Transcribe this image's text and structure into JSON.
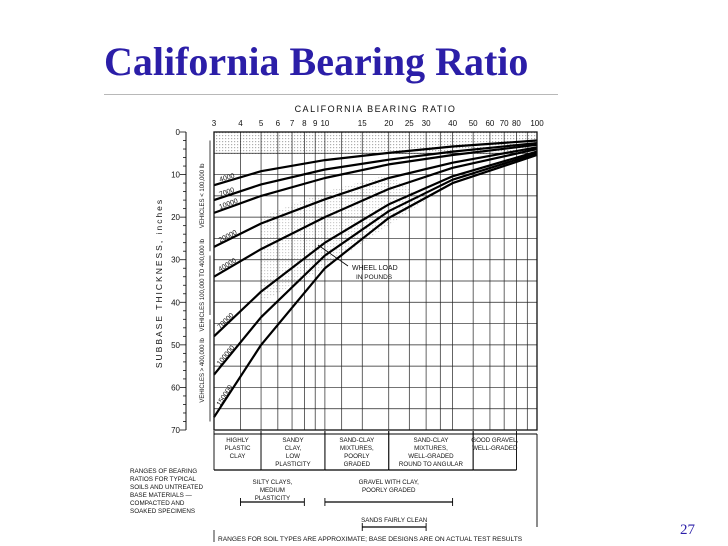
{
  "slide": {
    "title": "California Bearing Ratio",
    "page_number": "27"
  },
  "chart_data": {
    "type": "line",
    "title": "CALIFORNIA   BEARING   RATIO",
    "xlabel": "",
    "ylabel": "SUBBASE   THICKNESS, inches",
    "x_scale": "log",
    "xlim": [
      3,
      100
    ],
    "ylim": [
      0,
      70
    ],
    "y_inverted": true,
    "grid": true,
    "x_ticks": [
      3,
      4,
      5,
      6,
      7,
      8,
      9,
      10,
      15,
      20,
      25,
      30,
      40,
      50,
      60,
      70,
      80,
      100
    ],
    "y_ticks": [
      0,
      10,
      20,
      30,
      40,
      50,
      60,
      70
    ],
    "series": [
      {
        "name": "4000",
        "points": [
          [
            3,
            12.5
          ],
          [
            5,
            9.2
          ],
          [
            10,
            6.6
          ],
          [
            20,
            4.9
          ],
          [
            40,
            3.4
          ],
          [
            100,
            2.0
          ]
        ]
      },
      {
        "name": "7000",
        "points": [
          [
            3,
            16
          ],
          [
            5,
            12.3
          ],
          [
            10,
            8.8
          ],
          [
            20,
            6.5
          ],
          [
            40,
            4.6
          ],
          [
            100,
            2.6
          ]
        ]
      },
      {
        "name": "10000",
        "points": [
          [
            3,
            19
          ],
          [
            5,
            15
          ],
          [
            10,
            10.8
          ],
          [
            20,
            7.6
          ],
          [
            40,
            5.4
          ],
          [
            100,
            3.0
          ]
        ]
      },
      {
        "name": "20000",
        "points": [
          [
            3,
            27
          ],
          [
            5,
            21.5
          ],
          [
            10,
            15.8
          ],
          [
            20,
            10.8
          ],
          [
            40,
            7.2
          ],
          [
            100,
            3.6
          ]
        ]
      },
      {
        "name": "40000",
        "points": [
          [
            3,
            34
          ],
          [
            5,
            27.5
          ],
          [
            10,
            20
          ],
          [
            20,
            13.4
          ],
          [
            40,
            8.4
          ],
          [
            100,
            4.0
          ]
        ]
      },
      {
        "name": "70000",
        "points": [
          [
            3,
            48
          ],
          [
            5,
            37.5
          ],
          [
            10,
            26
          ],
          [
            20,
            17
          ],
          [
            40,
            10.4
          ],
          [
            100,
            4.6
          ]
        ]
      },
      {
        "name": "100000",
        "points": [
          [
            3,
            57
          ],
          [
            5,
            43.5
          ],
          [
            10,
            29
          ],
          [
            20,
            18.6
          ],
          [
            40,
            11.2
          ],
          [
            100,
            5.0
          ]
        ]
      },
      {
        "name": "150000",
        "points": [
          [
            3,
            67
          ],
          [
            5,
            50
          ],
          [
            10,
            32
          ],
          [
            20,
            20.2
          ],
          [
            40,
            12
          ],
          [
            100,
            5.4
          ]
        ]
      }
    ],
    "annotations": {
      "traffic_groups": [
        "VEHICLES < 100,000 lb",
        "VEHICLES 100,000 TO 400,000 lb",
        "VEHICLES > 400,000 lb"
      ],
      "wheel_load_label": [
        "WHEEL LOAD",
        "IN POUNDS"
      ],
      "ranges_note": [
        "RANGES OF BEARING",
        "RATIOS FOR TYPICAL",
        "SOILS AND UNTREATED",
        "BASE MATERIALS —",
        "COMPACTED AND",
        "SOAKED SPECIMENS"
      ],
      "soil_ranges_upper": [
        {
          "label": [
            "HIGHLY",
            "PLASTIC",
            "CLAY"
          ],
          "from": 3,
          "to": 5
        },
        {
          "label": [
            "SANDY",
            "CLAY,",
            "LOW",
            "PLASTICITY"
          ],
          "from": 5,
          "to": 10
        },
        {
          "label": [
            "SAND-CLAY",
            "MIXTURES,",
            "POORLY",
            "GRADED"
          ],
          "from": 10,
          "to": 20
        },
        {
          "label": [
            "SAND-CLAY",
            "MIXTURES,",
            "WELL-GRADED",
            "ROUND TO ANGULAR"
          ],
          "from": 20,
          "to": 50
        },
        {
          "label": [
            "GOOD GRAVEL,",
            "WELL-GRADED"
          ],
          "from": 50,
          "to": 80
        }
      ],
      "soil_ranges_lower": [
        {
          "label": [
            "SILTY CLAYS,",
            "MEDIUM",
            "PLASTICITY"
          ],
          "from": 4,
          "to": 8
        },
        {
          "label": [
            "GRAVEL WITH CLAY,",
            "POORLY GRADED"
          ],
          "from": 10,
          "to": 40
        },
        {
          "label": [
            "SANDS FAIRLY CLEAN"
          ],
          "from": 15,
          "to": 30
        }
      ],
      "footnote": "RANGES FOR SOIL TYPES ARE APPROXIMATE; BASE DESIGNS ARE ON ACTUAL TEST RESULTS"
    }
  }
}
